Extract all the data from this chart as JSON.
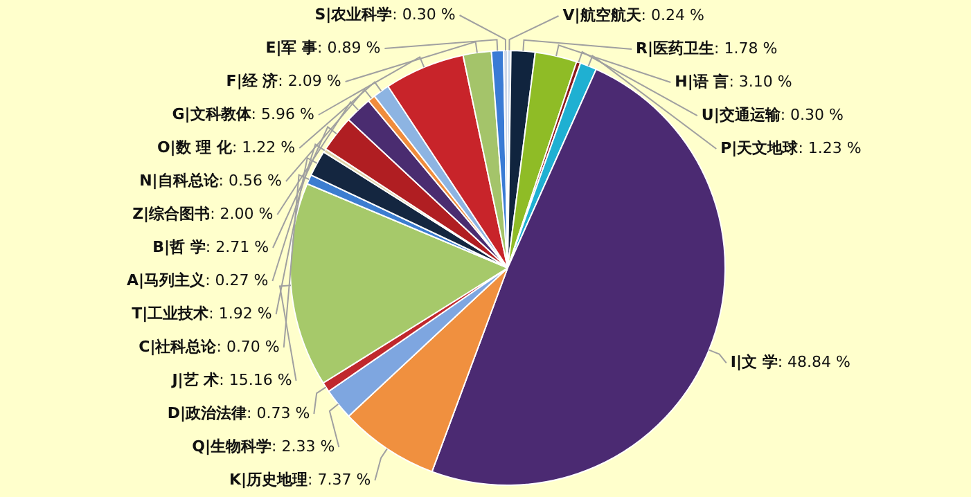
{
  "chart_data": {
    "type": "pie",
    "categories": [
      "V|航空航天",
      "R|医药卫生",
      "H|语 言",
      "U|交通运输",
      "P|天文地球",
      "I|文 学",
      "K|历史地理",
      "Q|生物科学",
      "D|政治法律",
      "J|艺 术",
      "C|社科总论",
      "T|工业技术",
      "A|马列主义",
      "B|哲 学",
      "Z|综合图书",
      "N|自科总论",
      "O|数 理 化",
      "G|文科教体",
      "F|经 济",
      "E|军 事",
      "S|农业科学"
    ],
    "values": [
      0.24,
      1.78,
      3.1,
      0.3,
      1.23,
      48.84,
      7.37,
      2.33,
      0.73,
      15.16,
      0.7,
      1.92,
      0.27,
      2.71,
      2.0,
      0.56,
      1.22,
      5.96,
      2.09,
      0.89,
      0.3
    ],
    "value_labels": [
      ": 0.24 %",
      ": 1.78 %",
      ": 3.10 %",
      ": 0.30 %",
      ": 1.23 %",
      ": 48.84 %",
      ": 7.37 %",
      ": 2.33 %",
      ": 0.73 %",
      ": 15.16 %",
      ": 0.70 %",
      ": 1.92 %",
      ": 0.27 %",
      ": 2.71 %",
      ": 2.00 %",
      ": 0.56 %",
      ": 1.22 %",
      ": 5.96 %",
      ": 2.09 %",
      ": 0.89 %",
      ": 0.30 %"
    ],
    "colors": [
      "#c9d8ec",
      "#10243e",
      "#8fbc26",
      "#8b1a1a",
      "#1fb0d2",
      "#4b2a72",
      "#f0903f",
      "#7ea6e0",
      "#c0282d",
      "#a6c96a",
      "#3c7dd0",
      "#142640",
      "#ddd3a8",
      "#b01e22",
      "#4a2c70",
      "#f08c3c",
      "#8db4e2",
      "#c8242a",
      "#a4c46a",
      "#3a7bd5",
      "#cfd8e8"
    ],
    "legend": false
  }
}
